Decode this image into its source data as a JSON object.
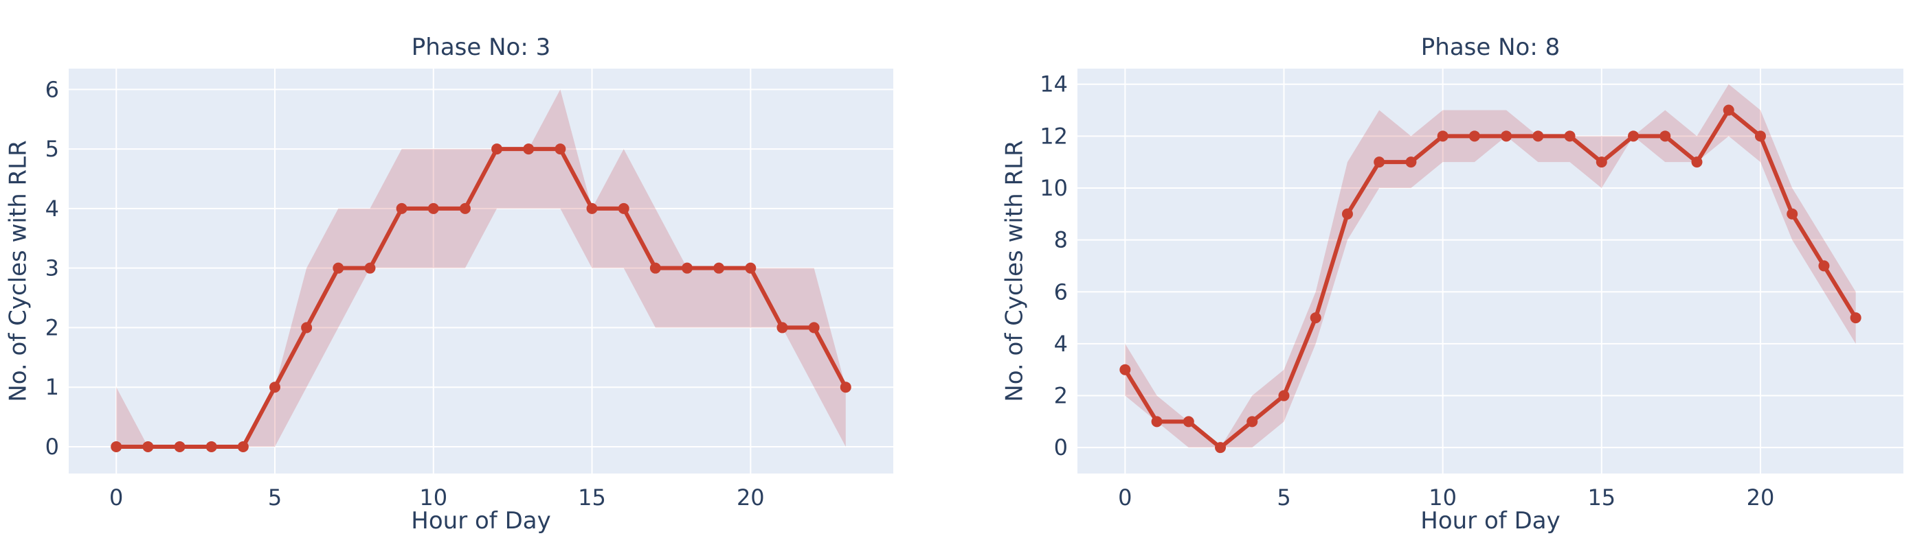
{
  "style": {
    "line_color": "#c9402f",
    "band_color": "#c9404a",
    "plot_bg": "#e5ecf6",
    "text_color": "#2a3f5f"
  },
  "chart_data": [
    {
      "type": "line",
      "title": "Phase No: 3",
      "xlabel": "Hour of Day",
      "ylabel": "No. of Cycles with RLR",
      "xlim": [
        -1.5,
        24.5
      ],
      "ylim": [
        -0.45,
        6.35
      ],
      "xticks": [
        0,
        5,
        10,
        15,
        20
      ],
      "yticks": [
        0,
        1,
        2,
        3,
        4,
        5,
        6
      ],
      "grid": true,
      "x": [
        0,
        1,
        2,
        3,
        4,
        5,
        6,
        7,
        8,
        9,
        10,
        11,
        12,
        13,
        14,
        15,
        16,
        17,
        18,
        19,
        20,
        21,
        22,
        23
      ],
      "series": [
        {
          "values": [
            0,
            0,
            0,
            0,
            0,
            1,
            2,
            3,
            3,
            4,
            4,
            4,
            5,
            5,
            5,
            4,
            4,
            3,
            3,
            3,
            3,
            2,
            2,
            1
          ]
        }
      ],
      "band_upper": [
        1,
        0,
        0,
        0,
        0,
        1,
        3,
        4,
        4,
        5,
        5,
        5,
        5,
        5,
        6,
        4,
        5,
        4,
        3,
        3,
        3,
        3,
        3,
        1
      ],
      "band_lower": [
        0,
        0,
        0,
        0,
        0,
        0,
        1,
        2,
        3,
        3,
        3,
        3,
        4,
        4,
        4,
        3,
        3,
        2,
        2,
        2,
        2,
        2,
        1,
        0
      ]
    },
    {
      "type": "line",
      "title": "Phase No: 8",
      "xlabel": "Hour of Day",
      "ylabel": "No. of Cycles with RLR",
      "xlim": [
        -1.5,
        24.5
      ],
      "ylim": [
        -1.0,
        14.6
      ],
      "xticks": [
        0,
        5,
        10,
        15,
        20
      ],
      "yticks": [
        0,
        2,
        4,
        6,
        8,
        10,
        12,
        14
      ],
      "grid": true,
      "x": [
        0,
        1,
        2,
        3,
        4,
        5,
        6,
        7,
        8,
        9,
        10,
        11,
        12,
        13,
        14,
        15,
        16,
        17,
        18,
        19,
        20,
        21,
        22,
        23
      ],
      "series": [
        {
          "values": [
            3,
            1,
            1,
            0,
            1,
            2,
            5,
            9,
            11,
            11,
            12,
            12,
            12,
            12,
            12,
            11,
            12,
            12,
            11,
            13,
            12,
            9,
            7,
            5
          ]
        }
      ],
      "band_upper": [
        4,
        2,
        1,
        0,
        2,
        3,
        6,
        11,
        13,
        12,
        13,
        13,
        13,
        12,
        12,
        12,
        12,
        13,
        12,
        14,
        13,
        10,
        8,
        6
      ],
      "band_lower": [
        2,
        1,
        0,
        0,
        0,
        1,
        4,
        8,
        10,
        10,
        11,
        11,
        12,
        11,
        11,
        10,
        12,
        11,
        11,
        12,
        11,
        8,
        6,
        4
      ]
    }
  ]
}
